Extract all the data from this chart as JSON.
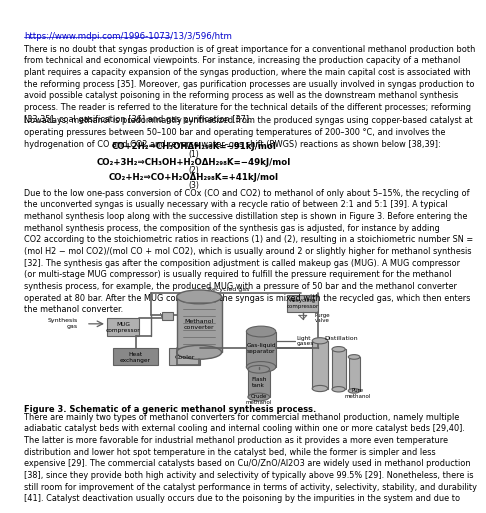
{
  "url": "https://www.mdpi.com/1996-1073/13/3/596/htm",
  "url_color": "#0000CC",
  "bg_color": "#FFFFFF",
  "text_color": "#000000",
  "para1": "There is no doubt that syngas production is of great importance for a conventional methanol production both\nfrom technical and economical viewpoints. For instance, increasing the production capacity of a methanol\nplant requires a capacity expansion of the syngas production, where the main capital cost is associated with\nthe reforming process [35]. Moreover, gas purification processes are usually involved in syngas production to\navoid possible catalyst poisoning in the reforming process as well as the downstream methanol synthesis\nprocess. The reader is referred to the literature for the technical details of the different processes; reforming\n[33,35], coal gasification [36] and gas purification [37].",
  "para2": "Nowadays, methanol is predominantly synthesized from the produced syngas using copper-based catalyst at\noperating pressures between 50–100 bar and operating temperatures of 200–300 °C, and involves the\nhydrogenation of CO and CO2 and reverse water–gas shift (RWGS) reactions as shown below [38,39]:",
  "eq1": "CO+2H₂⇒CH₃OHΔH₂₉₈K=−91kJ/mol",
  "eq2": "CO₂+3H₂⇒CH₃OH+H₂OΔH₂₉₈K=−49kJ/mol",
  "eq3": "CO₂+H₂⇒CO+H₂OΔH₂₉₈K=+41kJ/mol",
  "para3": "Due to the low one-pass conversion of COx (CO and CO2) to methanol of only about 5–15%, the recycling of\nthe unconverted syngas is usually necessary with a recycle ratio of between 2:1 and 5:1 [39]. A typical\nmethanol synthesis loop along with the successive distillation step is shown in Figure 3. Before entering the\nmethanol synthesis process, the composition of the synthesis gas is adjusted, for instance by adding\nCO2 according to the stoichiometric ratios in reactions (1) and (2), resulting in a stoichiometric number SN =\n(mol H2 − mol CO2)/(mol CO + mol CO2), which is usually around 2 or slightly higher for methanol synthesis\n[32]. The synthesis gas after the composition adjustment is called makeup gas (MUG). A MUG compressor\n(or multi-stage MUG compressor) is usually required to fulfill the pressure requirement for the methanol\nsynthesis process, for example, the produced MUG with a pressure of 50 bar and the methanol converter\noperated at 80 bar. After the MUG compressor, the syngas is mixed with the recycled gas, which then enters\nthe methanol converter.",
  "fig_caption_bold": "Figure 3. Schematic of a generic methanol synthesis process.",
  "fig_caption_body": "There are mainly two types of methanol converters for commercial methanol production, namely multiple\nadiabatic catalyst beds with external cooling and internal cooling within one or more catalyst beds [29,40].\nThe latter is more favorable for industrial methanol production as it provides a more even temperature\ndistribution and lower hot spot temperature in the catalyst bed, while the former is simpler and less\nexpensive [29]. The commercial catalysts based on Cu/O/ZnO/Al2O3 are widely used in methanol production\n[38], since they provide both high activity and selectivity of typically above 99.5% [29]. Nonetheless, there is\nstill room for improvement of the catalyst performance in terms of activity, selectivity, stability, and durability\n[41]. Catalyst deactivation usually occurs due to the poisoning by the impurities in the system and due to",
  "dgray": "#606060",
  "lgray": "#B0B0B0",
  "mgray": "#909090",
  "tankgray": "#A0A0A0",
  "hxgray": "#888888"
}
